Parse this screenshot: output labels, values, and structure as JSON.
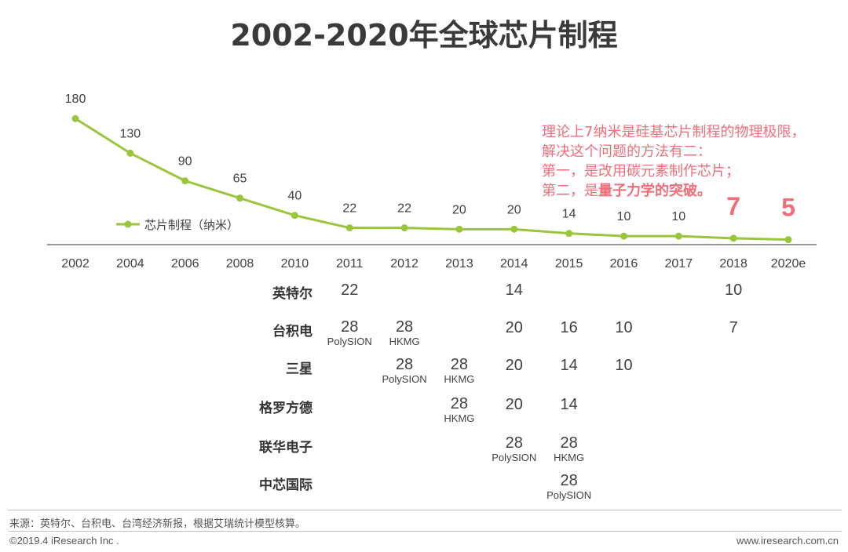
{
  "title": "2002-2020年全球芯片制程",
  "chart_data": {
    "type": "line",
    "title": "2002-2020年全球芯片制程",
    "categories": [
      "2002",
      "2004",
      "2006",
      "2008",
      "2010",
      "2011",
      "2012",
      "2013",
      "2014",
      "2015",
      "2016",
      "2017",
      "2018",
      "2020e"
    ],
    "series": [
      {
        "name": "芯片制程（纳米）",
        "values": [
          180,
          130,
          90,
          65,
          40,
          22,
          22,
          20,
          20,
          14,
          10,
          10,
          7,
          5
        ],
        "color": "#9bc53d"
      }
    ],
    "data_labels": [
      "180",
      "130",
      "90",
      "65",
      "40",
      "22",
      "22",
      "20",
      "20",
      "14",
      "10",
      "10",
      "7",
      "5"
    ],
    "xlabel": "",
    "ylabel": "",
    "ylim": [
      0,
      200
    ],
    "legend": "left"
  },
  "note": {
    "line1": "理论上7纳米是硅基芯片制程的物理极限，",
    "line2": "解决这个问题的方法有二：",
    "line3": "第一，是改用碳元素制作芯片；",
    "line4_prefix": "第二，是",
    "line4_bold": "量子力学的突破。"
  },
  "table": {
    "rows": [
      {
        "label": "英特尔",
        "cells": [
          {
            "year": "2011",
            "value": "22",
            "sub": ""
          },
          {
            "year": "2014",
            "value": "14",
            "sub": ""
          },
          {
            "year": "2018",
            "value": "10",
            "sub": ""
          }
        ]
      },
      {
        "label": "台积电",
        "cells": [
          {
            "year": "2011",
            "value": "28",
            "sub": "PolySION"
          },
          {
            "year": "2012",
            "value": "28",
            "sub": "HKMG"
          },
          {
            "year": "2014",
            "value": "20",
            "sub": ""
          },
          {
            "year": "2015",
            "value": "16",
            "sub": ""
          },
          {
            "year": "2016",
            "value": "10",
            "sub": ""
          },
          {
            "year": "2018",
            "value": "7",
            "sub": ""
          }
        ]
      },
      {
        "label": "三星",
        "cells": [
          {
            "year": "2012",
            "value": "28",
            "sub": "PolySION"
          },
          {
            "year": "2013",
            "value": "28",
            "sub": "HKMG"
          },
          {
            "year": "2014",
            "value": "20",
            "sub": ""
          },
          {
            "year": "2015",
            "value": "14",
            "sub": ""
          },
          {
            "year": "2016",
            "value": "10",
            "sub": ""
          }
        ]
      },
      {
        "label": "格罗方德",
        "cells": [
          {
            "year": "2013",
            "value": "28",
            "sub": "HKMG"
          },
          {
            "year": "2014",
            "value": "20",
            "sub": ""
          },
          {
            "year": "2015",
            "value": "14",
            "sub": ""
          }
        ]
      },
      {
        "label": "联华电子",
        "cells": [
          {
            "year": "2014",
            "value": "28",
            "sub": "PolySION"
          },
          {
            "year": "2015",
            "value": "28",
            "sub": "HKMG"
          }
        ]
      },
      {
        "label": "中芯国际",
        "cells": [
          {
            "year": "2015",
            "value": "28",
            "sub": "PolySION"
          }
        ]
      }
    ]
  },
  "footer": {
    "source": "来源：英特尔、台积电、台湾经济新报，根据艾瑞统计模型核算。",
    "copyright": "©2019.4 iResearch Inc .",
    "website": "www.iresearch.com.cn"
  }
}
